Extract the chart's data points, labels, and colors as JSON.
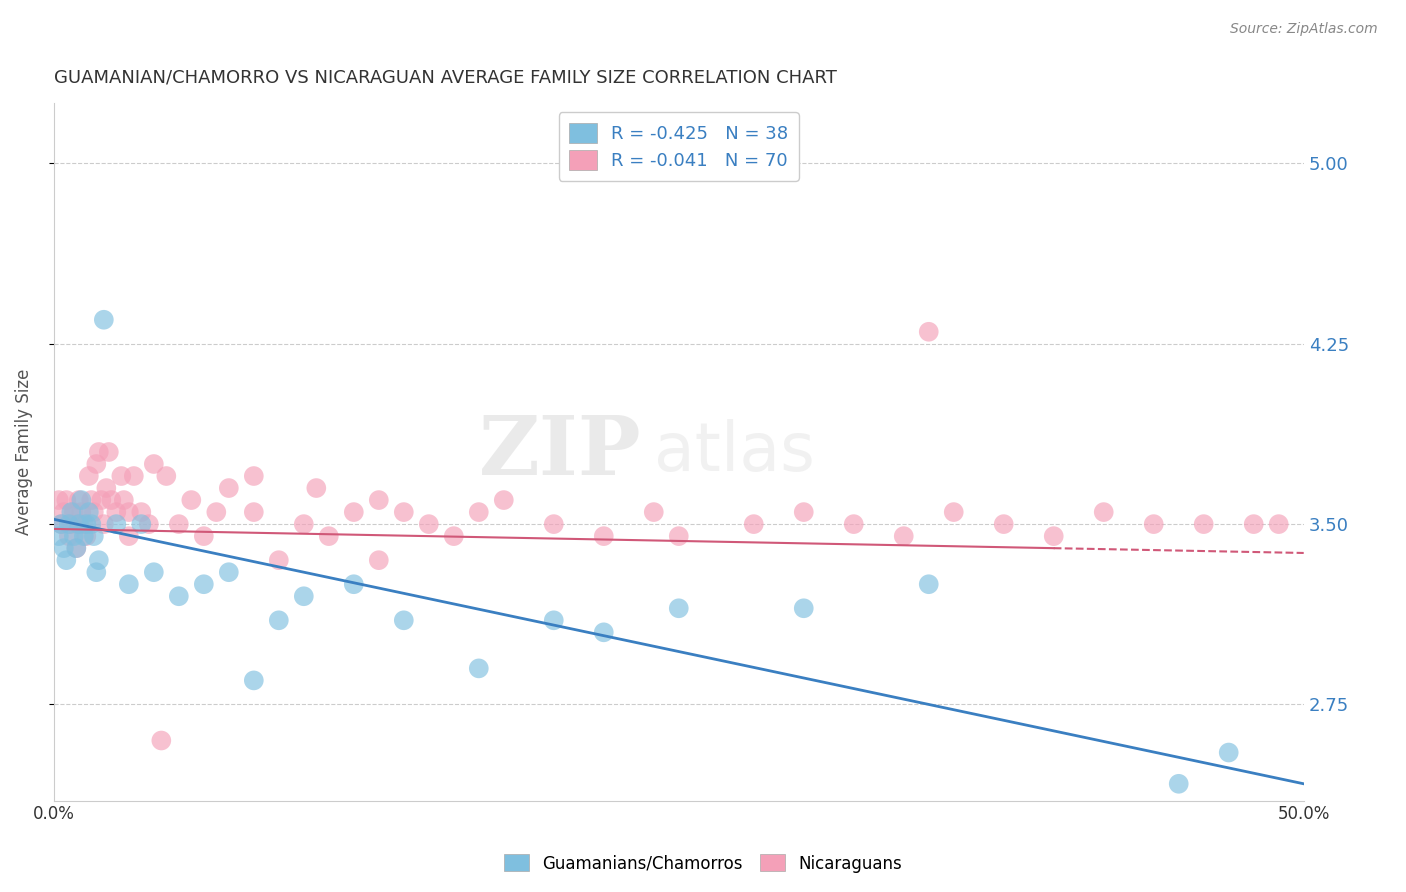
{
  "title": "GUAMANIAN/CHAMORRO VS NICARAGUAN AVERAGE FAMILY SIZE CORRELATION CHART",
  "source": "Source: ZipAtlas.com",
  "ylabel": "Average Family Size",
  "xlim": [
    0.0,
    50.0
  ],
  "ylim": [
    2.35,
    5.25
  ],
  "yticks": [
    2.75,
    3.5,
    4.25,
    5.0
  ],
  "xticks": [
    0.0,
    10.0,
    20.0,
    30.0,
    40.0,
    50.0
  ],
  "blue_label": "Guamanians/Chamorros",
  "pink_label": "Nicaraguans",
  "blue_R": "-0.425",
  "blue_N": "38",
  "pink_R": "-0.041",
  "pink_N": "70",
  "blue_color": "#7fbfdf",
  "pink_color": "#f4a0b8",
  "blue_line_color": "#3a7fc1",
  "pink_line_color": "#d05878",
  "watermark_zip": "ZIP",
  "watermark_atlas": "atlas",
  "background_color": "#ffffff",
  "legend_text_color": "#3a7fc1",
  "title_color": "#333333",
  "source_color": "#888888",
  "blue_x": [
    0.2,
    0.3,
    0.4,
    0.5,
    0.6,
    0.7,
    0.8,
    0.9,
    1.0,
    1.1,
    1.2,
    1.3,
    1.4,
    1.5,
    1.6,
    1.7,
    1.8,
    2.0,
    2.5,
    3.0,
    3.5,
    4.0,
    5.0,
    6.0,
    7.0,
    8.0,
    9.0,
    10.0,
    12.0,
    14.0,
    17.0,
    20.0,
    22.0,
    25.0,
    30.0,
    35.0,
    45.0,
    47.0
  ],
  "blue_y": [
    3.45,
    3.5,
    3.4,
    3.35,
    3.5,
    3.55,
    3.45,
    3.4,
    3.5,
    3.6,
    3.45,
    3.5,
    3.55,
    3.5,
    3.45,
    3.3,
    3.35,
    4.35,
    3.5,
    3.25,
    3.5,
    3.3,
    3.2,
    3.25,
    3.3,
    2.85,
    3.1,
    3.2,
    3.25,
    3.1,
    2.9,
    3.1,
    3.05,
    3.15,
    3.15,
    3.25,
    2.42,
    2.55
  ],
  "pink_x": [
    0.2,
    0.3,
    0.4,
    0.5,
    0.6,
    0.7,
    0.8,
    0.9,
    1.0,
    1.0,
    1.1,
    1.2,
    1.3,
    1.4,
    1.5,
    1.6,
    1.7,
    1.8,
    1.9,
    2.0,
    2.1,
    2.2,
    2.3,
    2.5,
    2.7,
    2.8,
    3.0,
    3.0,
    3.2,
    3.5,
    3.8,
    4.0,
    4.5,
    5.0,
    5.5,
    6.0,
    6.5,
    7.0,
    8.0,
    8.0,
    9.0,
    10.0,
    10.5,
    11.0,
    12.0,
    13.0,
    13.0,
    14.0,
    15.0,
    16.0,
    17.0,
    18.0,
    20.0,
    22.0,
    24.0,
    25.0,
    28.0,
    30.0,
    32.0,
    34.0,
    36.0,
    38.0,
    40.0,
    42.0,
    44.0,
    46.0,
    48.0,
    49.0,
    35.0,
    4.3
  ],
  "pink_y": [
    3.6,
    3.5,
    3.55,
    3.6,
    3.45,
    3.5,
    3.55,
    3.4,
    3.5,
    3.6,
    3.55,
    3.5,
    3.45,
    3.7,
    3.6,
    3.55,
    3.75,
    3.8,
    3.6,
    3.5,
    3.65,
    3.8,
    3.6,
    3.55,
    3.7,
    3.6,
    3.45,
    3.55,
    3.7,
    3.55,
    3.5,
    3.75,
    3.7,
    3.5,
    3.6,
    3.45,
    3.55,
    3.65,
    3.55,
    3.7,
    3.35,
    3.5,
    3.65,
    3.45,
    3.55,
    3.35,
    3.6,
    3.55,
    3.5,
    3.45,
    3.55,
    3.6,
    3.5,
    3.45,
    3.55,
    3.45,
    3.5,
    3.55,
    3.5,
    3.45,
    3.55,
    3.5,
    3.45,
    3.55,
    3.5,
    3.5,
    3.5,
    3.5,
    4.3,
    2.6
  ],
  "blue_line_x0": 0.0,
  "blue_line_y0": 3.52,
  "blue_line_x1": 50.0,
  "blue_line_y1": 2.42,
  "pink_line_x0": 0.0,
  "pink_line_y0": 3.48,
  "pink_line_x1": 50.0,
  "pink_line_y1": 3.38,
  "pink_solid_end": 40.0,
  "pink_dash_start": 40.0
}
